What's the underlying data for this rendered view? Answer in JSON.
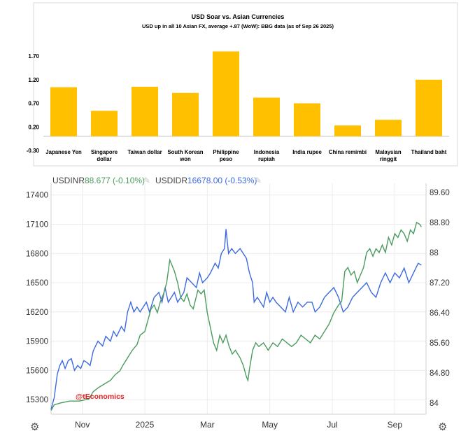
{
  "chart_data": [
    {
      "type": "bar",
      "title": "USD Soar vs. Asian Currencies",
      "subtitle": "USD up in all 10 Asian FX, average +.87 (WoW): BBG data (as of Sep 26 2025)",
      "categories": [
        [
          "Japanese Yen"
        ],
        [
          "Singapore",
          "dollar"
        ],
        [
          "Taiwan dollar"
        ],
        [
          "South Korean",
          "won"
        ],
        [
          "Philippine",
          "peso"
        ],
        [
          "Indonesia",
          "rupiah"
        ],
        [
          "India rupee"
        ],
        [
          "China remimbi"
        ],
        [
          "Malaysian",
          "ringgit"
        ],
        [
          "Thailand baht"
        ]
      ],
      "values": [
        1.04,
        0.54,
        1.05,
        0.92,
        1.8,
        0.82,
        0.7,
        0.23,
        0.35,
        1.2
      ],
      "ylim": [
        -0.3,
        2.0
      ],
      "yticks": [
        "1.70",
        "1.20",
        "0.70",
        "0.20",
        "-0.30"
      ],
      "ytick_values": [
        1.7,
        1.2,
        0.7,
        0.2,
        -0.3
      ],
      "bar_color": "#FFC000"
    },
    {
      "type": "line",
      "legend": [
        {
          "name": "USDINR",
          "value": "88.677 (-0.10%)",
          "color": "#4b9b5f"
        },
        {
          "name": "USDIDR",
          "value": "16678.00 (-0.53%)",
          "color": "#3c6be0"
        }
      ],
      "x_ticks": [
        "Nov",
        "2025",
        "Mar",
        "May",
        "Jul",
        "Sep"
      ],
      "x_tick_months": [
        1,
        3,
        5,
        7,
        9,
        11
      ],
      "x_range_months": [
        0,
        12
      ],
      "left_axis": {
        "ticks": [
          "17400",
          "17100",
          "16800",
          "16500",
          "16200",
          "15900",
          "15600",
          "15300"
        ],
        "values": [
          17400,
          17100,
          16800,
          16500,
          16200,
          15900,
          15600,
          15300
        ],
        "range": [
          15150,
          17520
        ]
      },
      "right_axis": {
        "ticks": [
          "89.60",
          "88.80",
          "88",
          "87.20",
          "86.40",
          "85.60",
          "84.80",
          "84"
        ],
        "values": [
          89.6,
          88.8,
          88.0,
          87.2,
          86.4,
          85.6,
          84.8,
          84.0
        ],
        "range": [
          83.7,
          89.84
        ]
      },
      "watermark": "@tEconomics",
      "series": [
        {
          "name": "USDIDR",
          "axis": "left",
          "color": "#3c6be0",
          "points": [
            [
              0.0,
              15200
            ],
            [
              0.1,
              15320
            ],
            [
              0.2,
              15560
            ],
            [
              0.28,
              15650
            ],
            [
              0.36,
              15700
            ],
            [
              0.45,
              15620
            ],
            [
              0.55,
              15700
            ],
            [
              0.65,
              15720
            ],
            [
              0.75,
              15600
            ],
            [
              0.85,
              15650
            ],
            [
              0.95,
              15620
            ],
            [
              1.05,
              15700
            ],
            [
              1.15,
              15680
            ],
            [
              1.25,
              15650
            ],
            [
              1.35,
              15800
            ],
            [
              1.5,
              15900
            ],
            [
              1.65,
              15850
            ],
            [
              1.75,
              15950
            ],
            [
              1.9,
              15900
            ],
            [
              2.0,
              16000
            ],
            [
              2.1,
              15950
            ],
            [
              2.25,
              16050
            ],
            [
              2.35,
              16000
            ],
            [
              2.45,
              16200
            ],
            [
              2.55,
              16300
            ],
            [
              2.65,
              16200
            ],
            [
              2.75,
              16250
            ],
            [
              2.85,
              16200
            ],
            [
              2.95,
              16250
            ],
            [
              3.05,
              16300
            ],
            [
              3.15,
              16200
            ],
            [
              3.3,
              16350
            ],
            [
              3.45,
              16400
            ],
            [
              3.55,
              16300
            ],
            [
              3.65,
              16450
            ],
            [
              3.75,
              16300
            ],
            [
              3.85,
              16350
            ],
            [
              3.95,
              16400
            ],
            [
              4.05,
              16300
            ],
            [
              4.15,
              16350
            ],
            [
              4.25,
              16400
            ],
            [
              4.35,
              16550
            ],
            [
              4.5,
              16500
            ],
            [
              4.65,
              16450
            ],
            [
              4.75,
              16600
            ],
            [
              4.85,
              16500
            ],
            [
              5.0,
              16550
            ],
            [
              5.1,
              16600
            ],
            [
              5.25,
              16700
            ],
            [
              5.35,
              16650
            ],
            [
              5.45,
              16800
            ],
            [
              5.55,
              16850
            ],
            [
              5.6,
              17050
            ],
            [
              5.68,
              16800
            ],
            [
              5.78,
              16850
            ],
            [
              5.9,
              16800
            ],
            [
              6.05,
              16850
            ],
            [
              6.15,
              16800
            ],
            [
              6.25,
              16750
            ],
            [
              6.35,
              16600
            ],
            [
              6.45,
              16500
            ],
            [
              6.5,
              16300
            ],
            [
              6.6,
              16350
            ],
            [
              6.7,
              16300
            ],
            [
              6.8,
              16250
            ],
            [
              6.9,
              16400
            ],
            [
              7.0,
              16300
            ],
            [
              7.1,
              16350
            ],
            [
              7.2,
              16300
            ],
            [
              7.35,
              16250
            ],
            [
              7.5,
              16200
            ],
            [
              7.62,
              16350
            ],
            [
              7.75,
              16200
            ],
            [
              7.9,
              16300
            ],
            [
              8.05,
              16250
            ],
            [
              8.2,
              16300
            ],
            [
              8.35,
              16300
            ],
            [
              8.45,
              16200
            ],
            [
              8.6,
              16250
            ],
            [
              8.75,
              16350
            ],
            [
              8.9,
              16400
            ],
            [
              9.05,
              16450
            ],
            [
              9.2,
              16350
            ],
            [
              9.35,
              16200
            ],
            [
              9.5,
              16250
            ],
            [
              9.65,
              16350
            ],
            [
              9.8,
              16400
            ],
            [
              9.95,
              16450
            ],
            [
              10.1,
              16500
            ],
            [
              10.25,
              16400
            ],
            [
              10.4,
              16350
            ],
            [
              10.55,
              16500
            ],
            [
              10.7,
              16600
            ],
            [
              10.85,
              16500
            ],
            [
              11.0,
              16600
            ],
            [
              11.15,
              16550
            ],
            [
              11.3,
              16650
            ],
            [
              11.45,
              16500
            ],
            [
              11.6,
              16600
            ],
            [
              11.75,
              16700
            ],
            [
              11.85,
              16680
            ]
          ]
        },
        {
          "name": "USDINR",
          "axis": "right",
          "color": "#4b9b5f",
          "points": [
            [
              0.0,
              83.8
            ],
            [
              0.1,
              83.95
            ],
            [
              0.3,
              84.0
            ],
            [
              0.6,
              84.05
            ],
            [
              0.9,
              84.05
            ],
            [
              1.2,
              84.1
            ],
            [
              1.35,
              84.3
            ],
            [
              1.5,
              84.4
            ],
            [
              1.7,
              84.5
            ],
            [
              1.9,
              84.6
            ],
            [
              2.05,
              84.75
            ],
            [
              2.2,
              84.85
            ],
            [
              2.3,
              85.0
            ],
            [
              2.45,
              85.2
            ],
            [
              2.6,
              85.4
            ],
            [
              2.75,
              85.55
            ],
            [
              2.85,
              85.8
            ],
            [
              3.0,
              85.9
            ],
            [
              3.1,
              86.2
            ],
            [
              3.2,
              86.5
            ],
            [
              3.3,
              86.6
            ],
            [
              3.4,
              86.4
            ],
            [
              3.5,
              86.7
            ],
            [
              3.6,
              86.9
            ],
            [
              3.7,
              87.2
            ],
            [
              3.8,
              87.8
            ],
            [
              3.85,
              87.7
            ],
            [
              3.95,
              87.5
            ],
            [
              4.05,
              87.2
            ],
            [
              4.15,
              86.8
            ],
            [
              4.25,
              86.7
            ],
            [
              4.35,
              86.9
            ],
            [
              4.45,
              86.6
            ],
            [
              4.55,
              86.5
            ],
            [
              4.7,
              87.0
            ],
            [
              4.8,
              86.9
            ],
            [
              4.9,
              87.0
            ],
            [
              5.0,
              86.4
            ],
            [
              5.1,
              86.0
            ],
            [
              5.2,
              85.6
            ],
            [
              5.3,
              85.4
            ],
            [
              5.4,
              85.8
            ],
            [
              5.5,
              85.6
            ],
            [
              5.6,
              85.8
            ],
            [
              5.7,
              85.5
            ],
            [
              5.8,
              85.3
            ],
            [
              5.9,
              85.4
            ],
            [
              6.05,
              85.2
            ],
            [
              6.15,
              85.0
            ],
            [
              6.25,
              84.7
            ],
            [
              6.3,
              84.6
            ],
            [
              6.35,
              84.9
            ],
            [
              6.45,
              85.4
            ],
            [
              6.55,
              85.6
            ],
            [
              6.65,
              85.5
            ],
            [
              6.8,
              85.6
            ],
            [
              6.95,
              85.4
            ],
            [
              7.1,
              85.6
            ],
            [
              7.25,
              85.5
            ],
            [
              7.4,
              85.7
            ],
            [
              7.55,
              85.6
            ],
            [
              7.7,
              85.5
            ],
            [
              7.85,
              85.6
            ],
            [
              8.0,
              85.8
            ],
            [
              8.15,
              85.7
            ],
            [
              8.3,
              85.6
            ],
            [
              8.45,
              85.8
            ],
            [
              8.6,
              85.7
            ],
            [
              8.75,
              85.9
            ],
            [
              8.9,
              86.1
            ],
            [
              9.05,
              86.4
            ],
            [
              9.2,
              86.6
            ],
            [
              9.3,
              86.7
            ],
            [
              9.4,
              87.5
            ],
            [
              9.5,
              87.6
            ],
            [
              9.6,
              87.4
            ],
            [
              9.7,
              87.5
            ],
            [
              9.8,
              87.2
            ],
            [
              9.9,
              87.4
            ],
            [
              10.0,
              87.6
            ],
            [
              10.1,
              88.0
            ],
            [
              10.2,
              88.1
            ],
            [
              10.3,
              87.9
            ],
            [
              10.4,
              88.1
            ],
            [
              10.5,
              88.0
            ],
            [
              10.6,
              88.2
            ],
            [
              10.7,
              88.0
            ],
            [
              10.8,
              88.4
            ],
            [
              10.9,
              88.2
            ],
            [
              11.0,
              88.5
            ],
            [
              11.1,
              88.4
            ],
            [
              11.2,
              88.6
            ],
            [
              11.3,
              88.5
            ],
            [
              11.4,
              88.3
            ],
            [
              11.5,
              88.6
            ],
            [
              11.6,
              88.5
            ],
            [
              11.7,
              88.8
            ],
            [
              11.8,
              88.75
            ],
            [
              11.85,
              88.68
            ]
          ]
        }
      ]
    }
  ]
}
